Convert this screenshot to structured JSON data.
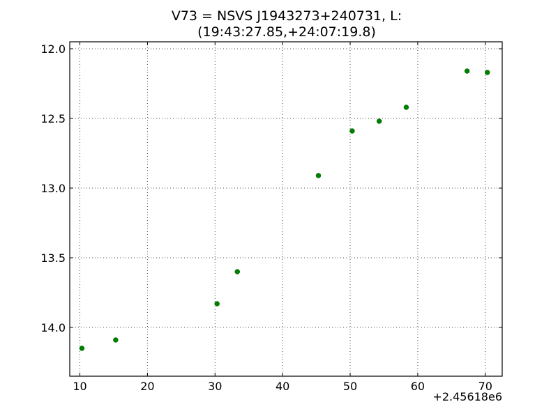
{
  "chart_data": {
    "type": "scatter",
    "title_line1": "V73 = NSVS J1943273+240731, L:",
    "title_line2": "(19:43:27.85,+24:07:19.8)",
    "xlabel": "",
    "ylabel": "",
    "x_offset_label": "+2.45618e6",
    "xlim": [
      8.5,
      72.5
    ],
    "ylim": [
      14.35,
      11.95
    ],
    "y_inverted": true,
    "x_ticks": [
      10,
      20,
      30,
      40,
      50,
      60,
      70
    ],
    "x_tick_labels": [
      "10",
      "20",
      "30",
      "40",
      "50",
      "60",
      "70"
    ],
    "y_ticks": [
      12.0,
      12.5,
      13.0,
      13.5,
      14.0
    ],
    "y_tick_labels": [
      "12.0",
      "12.5",
      "13.0",
      "13.5",
      "14.0"
    ],
    "grid": true,
    "marker_color": "#007f00",
    "series": [
      {
        "x": [
          10.3,
          15.3,
          30.3,
          33.3,
          45.3,
          50.3,
          54.3,
          58.3,
          67.3,
          70.3
        ],
        "y": [
          14.15,
          14.09,
          13.83,
          13.6,
          12.91,
          12.59,
          12.52,
          12.42,
          12.16,
          12.17
        ]
      }
    ]
  }
}
